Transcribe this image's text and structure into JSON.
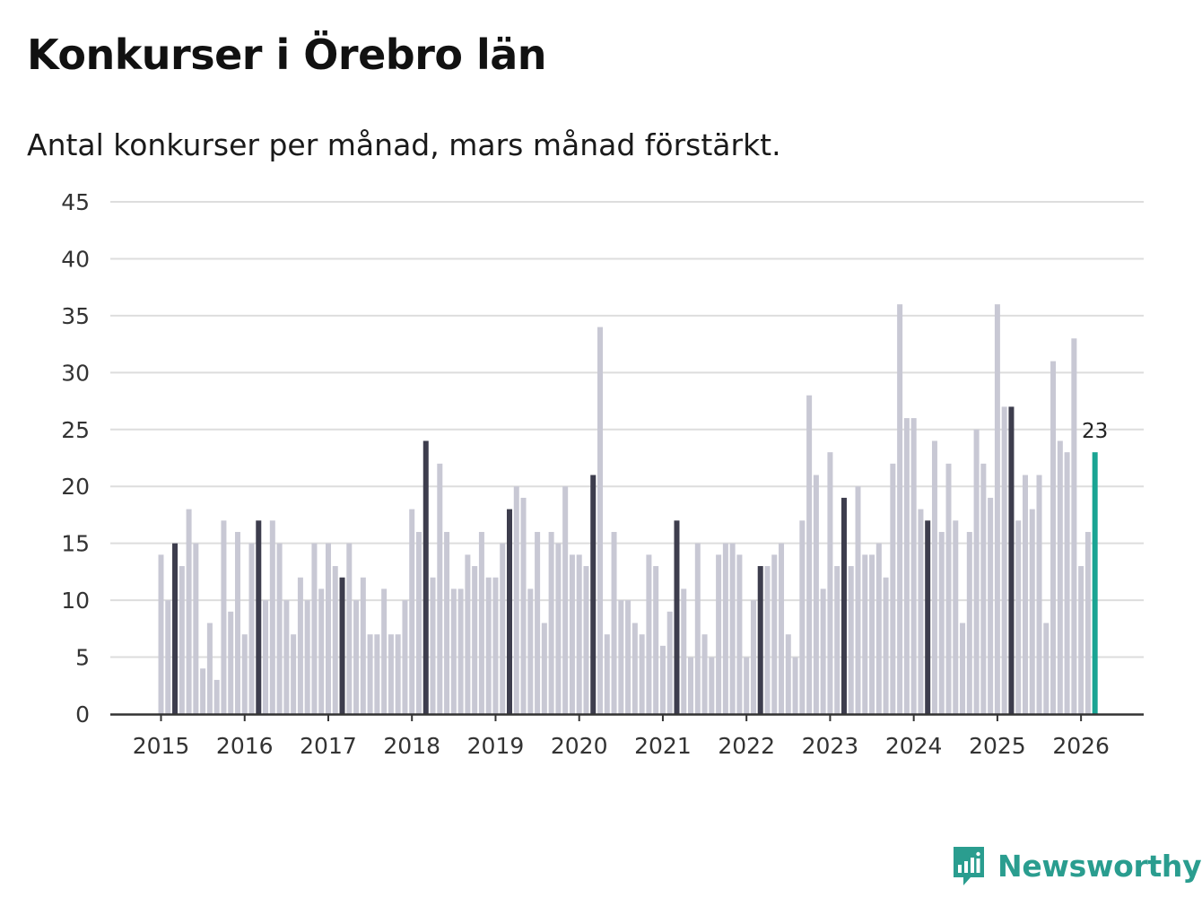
{
  "title": "Konkurser i Örebro län",
  "subtitle": "Antal konkurser per månad, mars månad förstärkt.",
  "brand": {
    "name": "Newsworthy",
    "icon": "newsworthy-logo-icon"
  },
  "colors": {
    "bar": "#c8c8d4",
    "highlight_march": "#3d3d4d",
    "latest": "#1aa493",
    "grid": "#dddddd",
    "axis": "#333333",
    "brand": "#2a9d8f"
  },
  "chart_data": {
    "type": "bar",
    "title": "Konkurser i Örebro län",
    "subtitle": "Antal konkurser per månad, mars månad förstärkt.",
    "xlabel": "",
    "ylabel": "",
    "ylim": [
      0,
      45
    ],
    "yticks": [
      "0",
      "5",
      "10",
      "15",
      "20",
      "25",
      "30",
      "35",
      "40",
      "45"
    ],
    "xticks": [
      "2015",
      "2016",
      "2017",
      "2018",
      "2019",
      "2020",
      "2021",
      "2022",
      "2023",
      "2024",
      "2025",
      "2026"
    ],
    "grid": true,
    "start": "2015-01",
    "end": "2026-03",
    "highlight_month": 3,
    "values": [
      14,
      10,
      15,
      13,
      18,
      15,
      4,
      8,
      3,
      17,
      9,
      16,
      7,
      15,
      17,
      10,
      17,
      15,
      10,
      7,
      12,
      10,
      15,
      11,
      15,
      13,
      12,
      15,
      10,
      12,
      7,
      7,
      11,
      7,
      7,
      10,
      18,
      16,
      24,
      12,
      22,
      16,
      11,
      11,
      14,
      13,
      16,
      12,
      12,
      15,
      18,
      20,
      19,
      11,
      16,
      8,
      16,
      15,
      20,
      14,
      14,
      13,
      21,
      34,
      7,
      16,
      10,
      10,
      8,
      7,
      14,
      13,
      6,
      9,
      17,
      11,
      5,
      15,
      7,
      5,
      14,
      15,
      15,
      14,
      5,
      10,
      13,
      13,
      14,
      15,
      7,
      5,
      17,
      28,
      21,
      11,
      23,
      13,
      19,
      13,
      20,
      14,
      14,
      15,
      12,
      22,
      36,
      26,
      26,
      18,
      17,
      24,
      16,
      22,
      17,
      8,
      16,
      25,
      22,
      19,
      36,
      27,
      27,
      17,
      21,
      18,
      21,
      8,
      31,
      24,
      23,
      33,
      13,
      16,
      23
    ],
    "latest_label": "23"
  }
}
